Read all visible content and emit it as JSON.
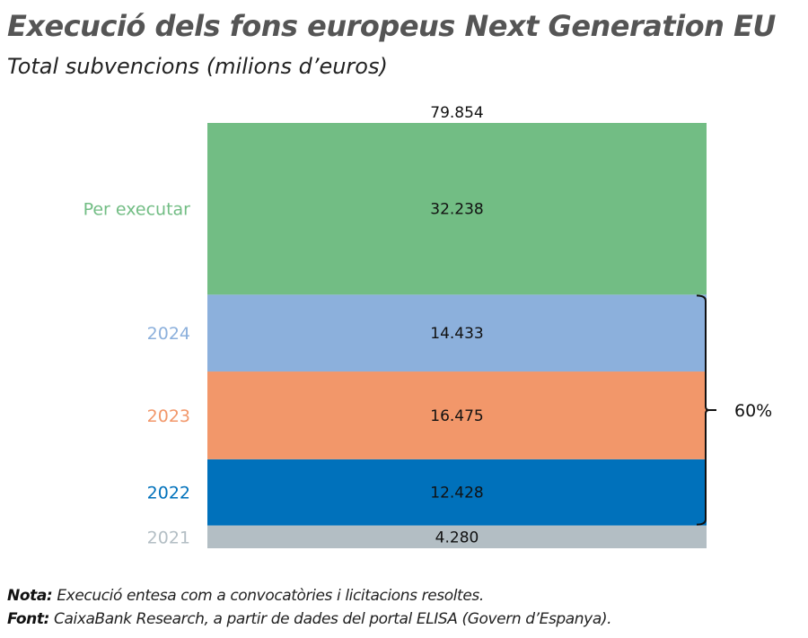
{
  "title": "Execució dels fons europeus Next Generation EU",
  "subtitle": "Total subvencions (milions d’euros)",
  "chart_data": {
    "type": "bar",
    "stacked": true,
    "categories": [
      "2021",
      "2022",
      "2023",
      "2024",
      "Per executar"
    ],
    "values": [
      4280,
      12428,
      16475,
      14433,
      32238
    ],
    "value_labels": [
      "4.280",
      "12.428",
      "16.475",
      "14.433",
      "32.238"
    ],
    "colors": [
      "#b3bec4",
      "#0071bb",
      "#f2976a",
      "#8cb0dc",
      "#72bd84"
    ],
    "total": 79854,
    "total_label": "79.854",
    "bracket_label": "60%",
    "ylim": [
      0,
      79854
    ],
    "grid": false
  },
  "notes": {
    "nota_label": "Nota:",
    "nota_text": " Execució entesa com a convocatòries i licitacions resoltes.",
    "font_label": "Font:",
    "font_text": " CaixaBank Research, a partir de dades del portal ELISA (Govern d’Espanya)."
  }
}
